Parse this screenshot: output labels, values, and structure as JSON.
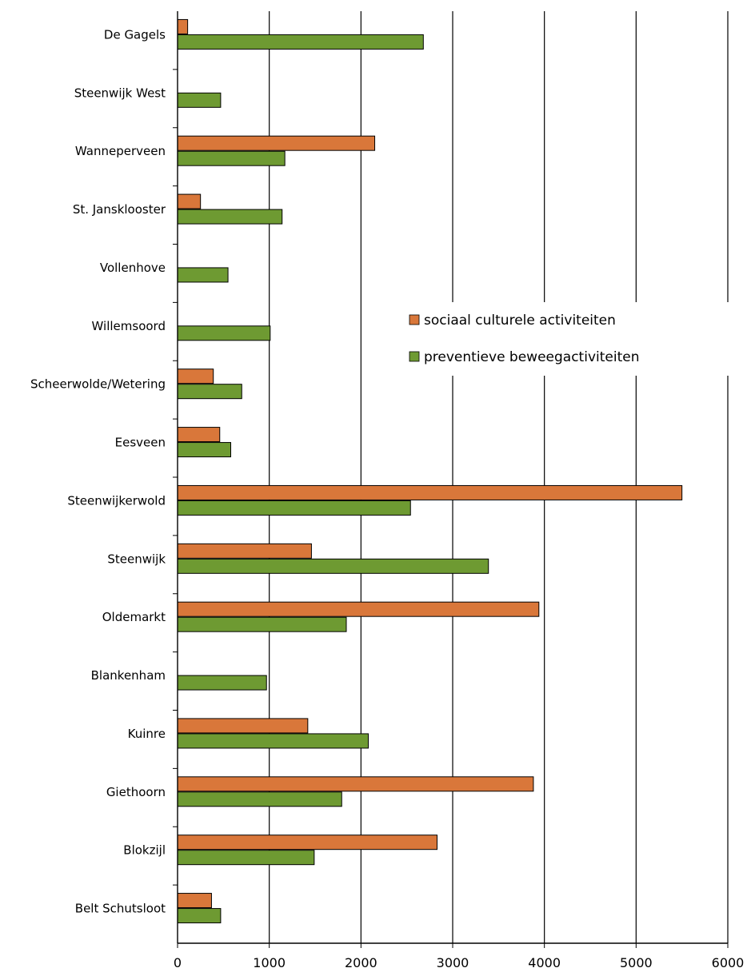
{
  "chart_data": {
    "type": "bar",
    "orientation": "horizontal",
    "title": "",
    "xlabel": "",
    "ylabel": "",
    "xlim": [
      0,
      6000
    ],
    "x_ticks": [
      "0",
      "1000",
      "2000",
      "3000",
      "4000",
      "5000",
      "6000"
    ],
    "grid": "vertical",
    "legend_position": "right-middle",
    "categories": [
      "De Gagels",
      "Steenwijk West",
      "Wanneperveen",
      "St. Jansklooster",
      "Vollenhove",
      "Willemsoord",
      "Scheerwolde/Wetering",
      "Eesveen",
      "Steenwijkerwold",
      "Steenwijk",
      "Oldemarkt",
      "Blankenham",
      "Kuinre",
      "Giethoorn",
      "Blokzijl",
      "Belt Schutsloot"
    ],
    "series": [
      {
        "name": "sociaal culturele activiteiten",
        "color": "#d9773a",
        "values": [
          110,
          0,
          2150,
          250,
          0,
          0,
          390,
          460,
          5500,
          1460,
          3940,
          0,
          1420,
          3880,
          2830,
          370
        ]
      },
      {
        "name": "preventieve beweegactiviteiten",
        "color": "#6e9a32",
        "values": [
          2680,
          470,
          1170,
          1140,
          550,
          1010,
          700,
          580,
          2540,
          3390,
          1840,
          970,
          2080,
          1790,
          1490,
          470
        ]
      }
    ]
  }
}
